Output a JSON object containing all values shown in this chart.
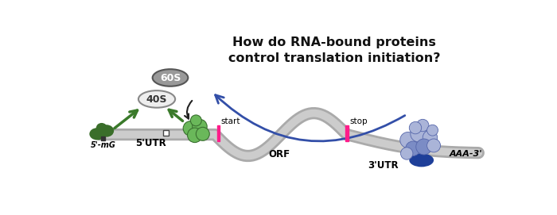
{
  "title_line1": "How do RNA-bound proteins",
  "title_line2": "control translation initiation?",
  "title_fontsize": 11,
  "title_color": "#111111",
  "bg_color": "#ffffff",
  "mrna_outer_color": "#aaaaaa",
  "mrna_inner_color": "#cccccc",
  "five_cap_color_dark": "#3a6e2a",
  "five_cap_color_light": "#5a9a45",
  "initiation_factor_color": "#6ab85a",
  "pabp_body_color": "#7b8cc5",
  "pabp_small_color": "#aab4d8",
  "poly_a_binding_color": "#1e3f99",
  "start_stop_color": "#ff1c8a",
  "arrow_blue_color": "#334fa8",
  "arrow_green_color": "#3a7a2a",
  "arrow_black_color": "#222222",
  "ribo_40s_fill": "#eeeeee",
  "ribo_40s_edge": "#888888",
  "ribo_60s_fill": "#999999",
  "ribo_60s_edge": "#555555",
  "label_5utr": "5'UTR",
  "label_3utr": "3'UTR",
  "label_orf": "ORF",
  "label_start": "start",
  "label_stop": "stop",
  "label_5cap": "5'-mG",
  "label_aaa": "AAA-3'",
  "label_40s": "40S",
  "label_60s": "60S"
}
